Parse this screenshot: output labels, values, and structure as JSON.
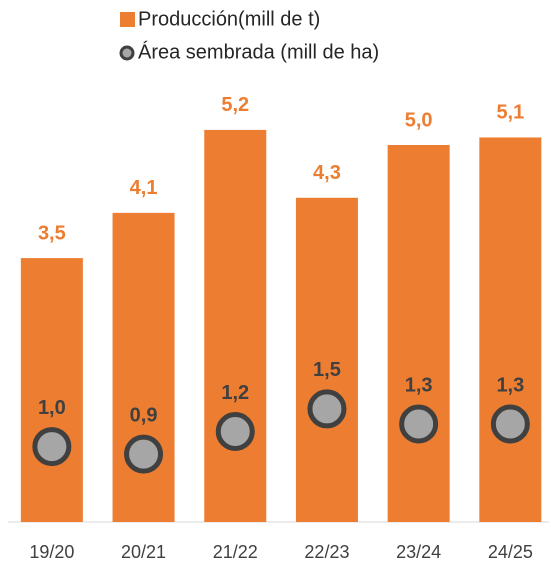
{
  "chart_data": {
    "type": "bar",
    "categories": [
      "19/20",
      "20/21",
      "21/22",
      "22/23",
      "23/24",
      "24/25"
    ],
    "series": [
      {
        "name": "Producción(mill de t)",
        "type": "bar",
        "color": "#ed7d31",
        "values": [
          3.5,
          4.1,
          5.2,
          4.3,
          5.0,
          5.1
        ],
        "value_labels": [
          "3,5",
          "4,1",
          "5,2",
          "4,3",
          "5,0",
          "5,1"
        ]
      },
      {
        "name": "Área sembrada (mill de ha)",
        "type": "scatter",
        "color": "#a6a6a6",
        "values": [
          1.0,
          0.9,
          1.2,
          1.5,
          1.3,
          1.3
        ],
        "value_labels": [
          "1,0",
          "0,9",
          "1,2",
          "1,5",
          "1,3",
          "1,3"
        ]
      }
    ],
    "ylim": [
      0,
      6.2
    ]
  }
}
